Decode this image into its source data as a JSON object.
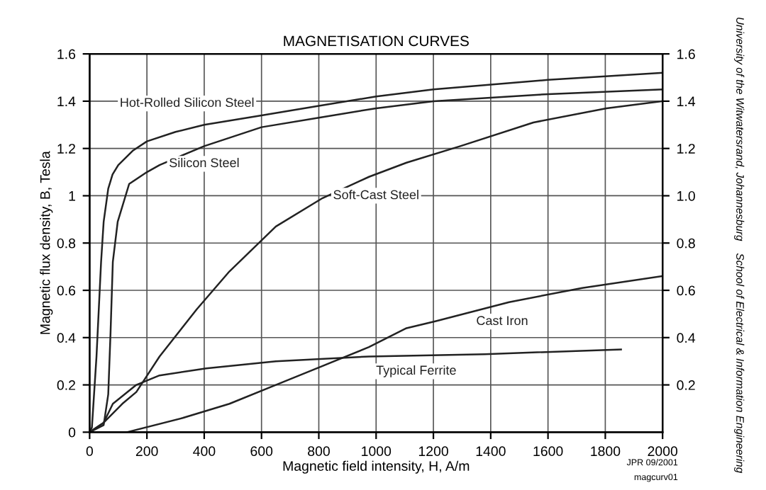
{
  "chart_data": {
    "type": "line",
    "title": "MAGNETISATION CURVES",
    "xlabel": "Magnetic field intensity, H, A/m",
    "ylabel": "Magnetic flux density, B, Tesla",
    "series": [
      {
        "name": "Hot-Rolled Silicon Steel",
        "color": "#222222",
        "x": [
          0,
          8,
          24,
          40,
          49,
          65,
          80,
          100,
          150,
          200,
          300,
          400,
          600,
          800,
          1000,
          1200,
          1600,
          2000
        ],
        "values": [
          0,
          0.02,
          0.32,
          0.72,
          0.89,
          1.03,
          1.09,
          1.13,
          1.19,
          1.23,
          1.27,
          1.3,
          1.34,
          1.38,
          1.42,
          1.45,
          1.49,
          1.52
        ]
      },
      {
        "name": "Silicon Steel",
        "color": "#222222",
        "x": [
          0,
          49,
          65,
          73,
          81,
          98,
          138,
          200,
          244,
          400,
          600,
          800,
          1000,
          1200,
          1600,
          2000
        ],
        "values": [
          0,
          0.03,
          0.16,
          0.42,
          0.72,
          0.89,
          1.05,
          1.1,
          1.13,
          1.21,
          1.29,
          1.33,
          1.37,
          1.4,
          1.43,
          1.45
        ]
      },
      {
        "name": "Soft-Cast Steel",
        "color": "#222222",
        "x": [
          0,
          49,
          114,
          163,
          244,
          374,
          488,
          650,
          813,
          975,
          1106,
          1294,
          1549,
          1804,
          2000
        ],
        "values": [
          0,
          0.04,
          0.12,
          0.17,
          0.32,
          0.52,
          0.68,
          0.87,
          0.99,
          1.08,
          1.14,
          1.21,
          1.31,
          1.37,
          1.4
        ]
      },
      {
        "name": "Cast Iron",
        "color": "#222222",
        "x": [
          130,
          325,
          488,
          650,
          813,
          975,
          1106,
          1209,
          1464,
          1719,
          2000
        ],
        "values": [
          0,
          0.06,
          0.12,
          0.2,
          0.28,
          0.36,
          0.44,
          0.47,
          0.55,
          0.61,
          0.66
        ]
      },
      {
        "name": "Typical Ferrite",
        "color": "#222222",
        "x": [
          0,
          49,
          81,
          163,
          244,
          407,
          650,
          975,
          1379,
          1855
        ],
        "values": [
          0,
          0.04,
          0.12,
          0.2,
          0.24,
          0.27,
          0.3,
          0.32,
          0.33,
          0.35
        ]
      }
    ],
    "xlim": [
      0,
      2000
    ],
    "xticks": [
      0,
      200,
      400,
      600,
      800,
      1000,
      1200,
      1400,
      1600,
      1800,
      2000
    ],
    "ylim": [
      0,
      1.6
    ],
    "yticks": [
      0,
      0.2,
      0.4,
      0.6,
      0.8,
      1,
      1.2,
      1.4,
      1.6
    ],
    "y2lim": [
      0,
      1.6
    ],
    "y2ticks": [
      0.2,
      0.4,
      0.6,
      0.8,
      {
        "value": 1,
        "label": "1.0"
      },
      1.2,
      1.4,
      1.6
    ],
    "grid": true,
    "legend": false,
    "annotations": [
      "University of the Witwatersrand, Johannesburg    School of Electrical & Information Engineering",
      "JPR 09/2001",
      "magcurv01"
    ]
  }
}
